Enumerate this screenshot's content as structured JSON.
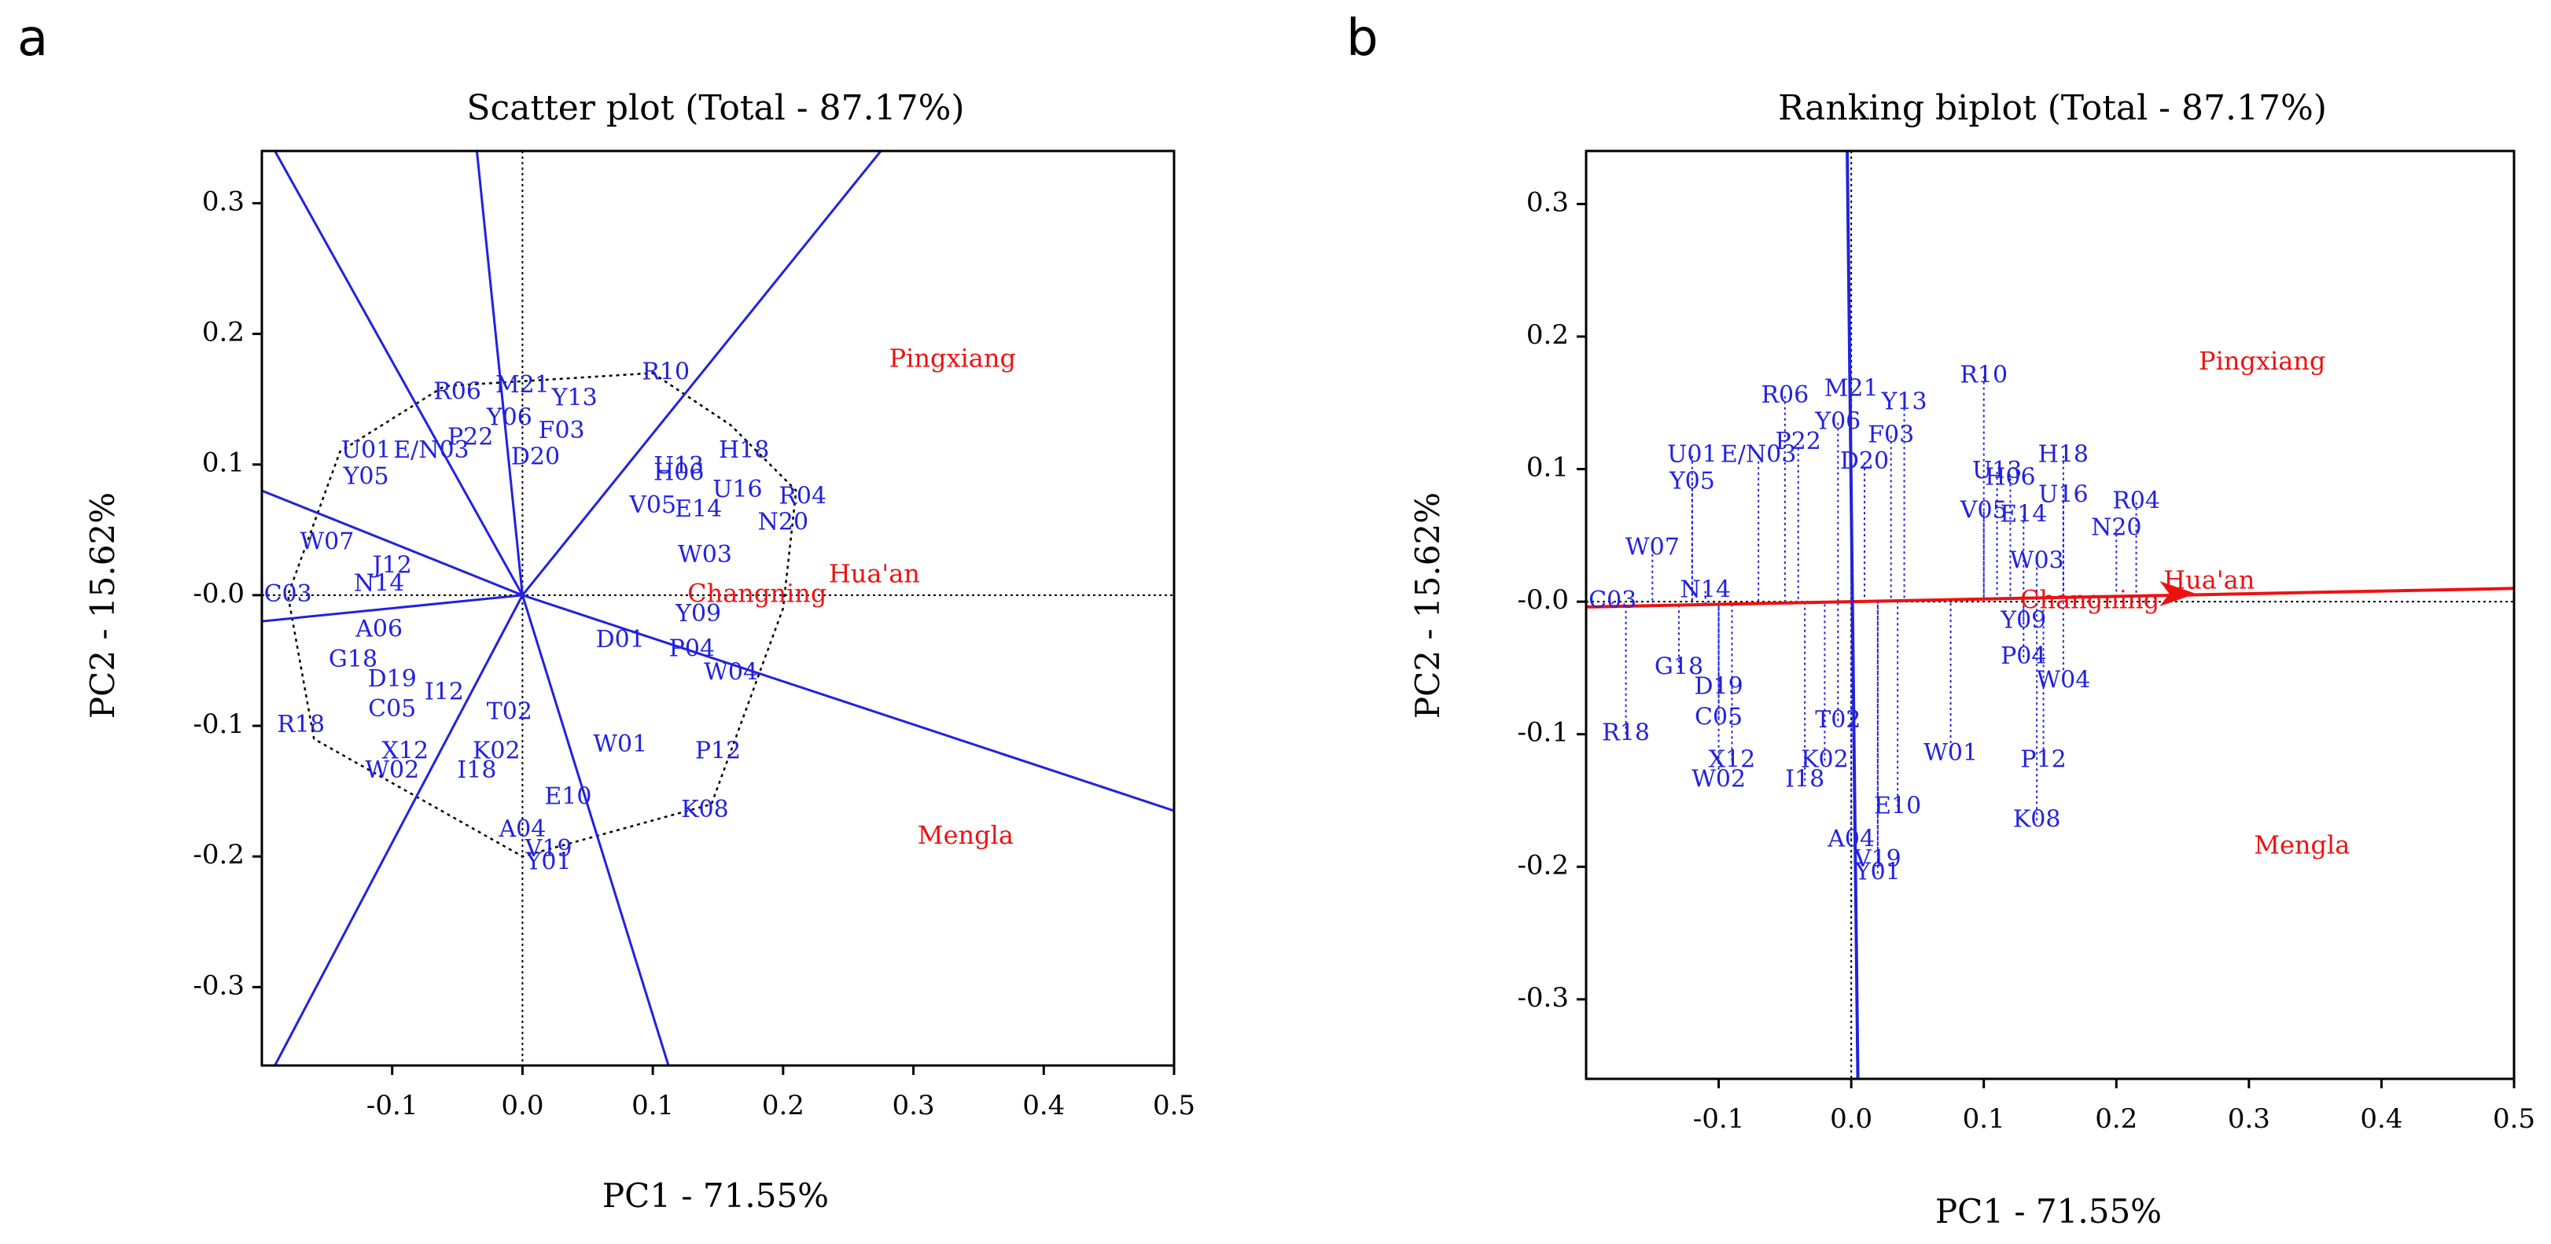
{
  "chart_data": [
    {
      "panel": "a",
      "type": "scatter",
      "title": "Scatter plot (Total - 87.17%)",
      "xlabel": "PC1 - 71.55%",
      "ylabel": "PC2 - 15.62%",
      "xlim": [
        -0.2,
        0.5
      ],
      "ylim": [
        -0.36,
        0.34
      ],
      "xticks": [
        -0.1,
        0.0,
        0.1,
        0.2,
        0.3,
        0.4,
        0.5
      ],
      "xtick_labels": [
        "-0.1",
        "0.0",
        "0.1",
        "0.2",
        "0.3",
        "0.4",
        "0.5"
      ],
      "yticks": [
        0.3,
        0.2,
        0.1,
        0.0,
        -0.1,
        -0.2,
        -0.3
      ],
      "ytick_labels": [
        "0.3",
        "0.2",
        "0.1",
        "-0.0",
        "-0.1",
        "-0.2",
        "-0.3"
      ],
      "series_color": "#2222dd",
      "env_color": "#ee1111",
      "environments": [
        {
          "name": "Pingxiang",
          "x": 0.33,
          "y": 0.18
        },
        {
          "name": "Hua'an",
          "x": 0.27,
          "y": 0.015
        },
        {
          "name": "Changning",
          "x": 0.18,
          "y": -0.0
        },
        {
          "name": "Mengla",
          "x": 0.34,
          "y": -0.185
        }
      ],
      "hull": [
        {
          "x": 0.1,
          "y": 0.17
        },
        {
          "x": 0.16,
          "y": 0.13
        },
        {
          "x": 0.21,
          "y": 0.08
        },
        {
          "x": 0.2,
          "y": -0.01
        },
        {
          "x": 0.145,
          "y": -0.16
        },
        {
          "x": 0.0,
          "y": -0.2
        },
        {
          "x": -0.16,
          "y": -0.11
        },
        {
          "x": -0.18,
          "y": 0.0
        },
        {
          "x": -0.14,
          "y": 0.11
        },
        {
          "x": -0.06,
          "y": 0.16
        }
      ],
      "rays": [
        {
          "x": -0.19,
          "y": 0.34
        },
        {
          "x": -0.035,
          "y": 0.34
        },
        {
          "x": 0.275,
          "y": 0.34
        },
        {
          "x": 0.5,
          "y": -0.165
        },
        {
          "x": 0.112,
          "y": -0.36
        },
        {
          "x": -0.19,
          "y": -0.36
        },
        {
          "x": -0.2,
          "y": 0.08
        },
        {
          "x": -0.2,
          "y": -0.02
        }
      ],
      "genotypes": [
        {
          "name": "R10",
          "x": 0.11,
          "y": 0.17
        },
        {
          "name": "R06",
          "x": -0.05,
          "y": 0.155
        },
        {
          "name": "M21",
          "x": 0.0,
          "y": 0.16
        },
        {
          "name": "Y13",
          "x": 0.04,
          "y": 0.15
        },
        {
          "name": "Y06",
          "x": -0.01,
          "y": 0.135
        },
        {
          "name": "P22",
          "x": -0.04,
          "y": 0.12
        },
        {
          "name": "F03",
          "x": 0.03,
          "y": 0.125
        },
        {
          "name": "U01",
          "x": -0.12,
          "y": 0.11
        },
        {
          "name": "E/N03",
          "x": -0.07,
          "y": 0.11
        },
        {
          "name": "D20",
          "x": 0.01,
          "y": 0.105
        },
        {
          "name": "H18",
          "x": 0.17,
          "y": 0.11
        },
        {
          "name": "U13",
          "x": 0.12,
          "y": 0.098
        },
        {
          "name": "H06",
          "x": 0.12,
          "y": 0.093
        },
        {
          "name": "U16",
          "x": 0.165,
          "y": 0.08
        },
        {
          "name": "R04",
          "x": 0.215,
          "y": 0.075
        },
        {
          "name": "N20",
          "x": 0.2,
          "y": 0.055
        },
        {
          "name": "Y05",
          "x": -0.12,
          "y": 0.09
        },
        {
          "name": "E14",
          "x": 0.135,
          "y": 0.065
        },
        {
          "name": "V05",
          "x": 0.1,
          "y": 0.068
        },
        {
          "name": "W03",
          "x": 0.14,
          "y": 0.03
        },
        {
          "name": "W07",
          "x": -0.15,
          "y": 0.04
        },
        {
          "name": "J12",
          "x": -0.1,
          "y": 0.022
        },
        {
          "name": "N14",
          "x": -0.11,
          "y": 0.008
        },
        {
          "name": "C03",
          "x": -0.18,
          "y": -0.0
        },
        {
          "name": "A06",
          "x": -0.11,
          "y": -0.027
        },
        {
          "name": "G18",
          "x": -0.13,
          "y": -0.05
        },
        {
          "name": "Y09",
          "x": 0.135,
          "y": -0.015
        },
        {
          "name": "P04",
          "x": 0.13,
          "y": -0.042
        },
        {
          "name": "W04",
          "x": 0.16,
          "y": -0.06
        },
        {
          "name": "D19",
          "x": -0.1,
          "y": -0.065
        },
        {
          "name": "I12",
          "x": -0.06,
          "y": -0.075
        },
        {
          "name": "C05",
          "x": -0.1,
          "y": -0.088
        },
        {
          "name": "R18",
          "x": -0.17,
          "y": -0.1
        },
        {
          "name": "X12",
          "x": -0.09,
          "y": -0.12
        },
        {
          "name": "W02",
          "x": -0.1,
          "y": -0.135
        },
        {
          "name": "K02",
          "x": -0.02,
          "y": -0.12
        },
        {
          "name": "I18",
          "x": -0.035,
          "y": -0.135
        },
        {
          "name": "W01",
          "x": 0.075,
          "y": -0.115
        },
        {
          "name": "P12",
          "x": 0.15,
          "y": -0.12
        },
        {
          "name": "E10",
          "x": 0.035,
          "y": -0.155
        },
        {
          "name": "K08",
          "x": 0.14,
          "y": -0.165
        },
        {
          "name": "A04",
          "x": 0.0,
          "y": -0.18
        },
        {
          "name": "V19",
          "x": 0.02,
          "y": -0.195
        },
        {
          "name": "Y01",
          "x": 0.02,
          "y": -0.205
        },
        {
          "name": "D01",
          "x": 0.075,
          "y": -0.035
        },
        {
          "name": "T02",
          "x": -0.01,
          "y": -0.09
        }
      ]
    },
    {
      "panel": "b",
      "type": "scatter",
      "title": "Ranking biplot (Total - 87.17%)",
      "xlabel": "PC1 - 71.55%",
      "ylabel": "PC2 - 15.62%",
      "xlim": [
        -0.2,
        0.5
      ],
      "ylim": [
        -0.36,
        0.34
      ],
      "xticks": [
        -0.1,
        0.0,
        0.1,
        0.2,
        0.3,
        0.4,
        0.5
      ],
      "xtick_labels": [
        "-0.1",
        "0.0",
        "0.1",
        "0.2",
        "0.3",
        "0.4",
        "0.5"
      ],
      "yticks": [
        0.3,
        0.2,
        0.1,
        0.0,
        -0.1,
        -0.2,
        -0.3
      ],
      "ytick_labels": [
        "0.3",
        "0.2",
        "0.1",
        "-0.0",
        "-0.1",
        "-0.2",
        "-0.3"
      ],
      "series_color": "#2222dd",
      "env_color": "#ee1111",
      "environments": [
        {
          "name": "Pingxiang",
          "x": 0.31,
          "y": 0.18
        },
        {
          "name": "Hua'an",
          "x": 0.27,
          "y": 0.015
        },
        {
          "name": "Changning",
          "x": 0.18,
          "y": -0.0
        },
        {
          "name": "Mengla",
          "x": 0.34,
          "y": -0.185
        }
      ],
      "aec_abscissa": {
        "from": {
          "x": -0.2,
          "y": -0.004
        },
        "to": {
          "x": 0.5,
          "y": 0.01
        }
      },
      "aec_arrow_tip": {
        "x": 0.26,
        "y": 0.006
      },
      "aec_ordinate": {
        "from": {
          "x": -0.003,
          "y": 0.34
        },
        "to": {
          "x": 0.005,
          "y": -0.36
        }
      },
      "genotypes": [
        {
          "name": "R10",
          "x": 0.1,
          "y": 0.17
        },
        {
          "name": "R06",
          "x": -0.05,
          "y": 0.155
        },
        {
          "name": "M21",
          "x": 0.0,
          "y": 0.16
        },
        {
          "name": "Y13",
          "x": 0.04,
          "y": 0.15
        },
        {
          "name": "Y06",
          "x": -0.01,
          "y": 0.135
        },
        {
          "name": "P22",
          "x": -0.04,
          "y": 0.12
        },
        {
          "name": "F03",
          "x": 0.03,
          "y": 0.125
        },
        {
          "name": "U01",
          "x": -0.12,
          "y": 0.11
        },
        {
          "name": "E/N03",
          "x": -0.07,
          "y": 0.11
        },
        {
          "name": "D20",
          "x": 0.01,
          "y": 0.105
        },
        {
          "name": "H18",
          "x": 0.16,
          "y": 0.11
        },
        {
          "name": "U13",
          "x": 0.11,
          "y": 0.098
        },
        {
          "name": "H06",
          "x": 0.12,
          "y": 0.093
        },
        {
          "name": "U16",
          "x": 0.16,
          "y": 0.08
        },
        {
          "name": "R04",
          "x": 0.215,
          "y": 0.075
        },
        {
          "name": "N20",
          "x": 0.2,
          "y": 0.055
        },
        {
          "name": "Y05",
          "x": -0.12,
          "y": 0.09
        },
        {
          "name": "E14",
          "x": 0.13,
          "y": 0.065
        },
        {
          "name": "V05",
          "x": 0.1,
          "y": 0.068
        },
        {
          "name": "W03",
          "x": 0.14,
          "y": 0.03
        },
        {
          "name": "W07",
          "x": -0.15,
          "y": 0.04
        },
        {
          "name": "N14",
          "x": -0.11,
          "y": 0.008
        },
        {
          "name": "C03",
          "x": -0.18,
          "y": -0.0
        },
        {
          "name": "G18",
          "x": -0.13,
          "y": -0.05
        },
        {
          "name": "Y09",
          "x": 0.13,
          "y": -0.015
        },
        {
          "name": "P04",
          "x": 0.13,
          "y": -0.042
        },
        {
          "name": "W04",
          "x": 0.16,
          "y": -0.06
        },
        {
          "name": "D19",
          "x": -0.1,
          "y": -0.065
        },
        {
          "name": "C05",
          "x": -0.1,
          "y": -0.088
        },
        {
          "name": "R18",
          "x": -0.17,
          "y": -0.1
        },
        {
          "name": "X12",
          "x": -0.09,
          "y": -0.12
        },
        {
          "name": "W02",
          "x": -0.1,
          "y": -0.135
        },
        {
          "name": "K02",
          "x": -0.02,
          "y": -0.12
        },
        {
          "name": "I18",
          "x": -0.035,
          "y": -0.135
        },
        {
          "name": "W01",
          "x": 0.075,
          "y": -0.115
        },
        {
          "name": "P12",
          "x": 0.145,
          "y": -0.12
        },
        {
          "name": "E10",
          "x": 0.035,
          "y": -0.155
        },
        {
          "name": "K08",
          "x": 0.14,
          "y": -0.165
        },
        {
          "name": "A04",
          "x": 0.0,
          "y": -0.18
        },
        {
          "name": "V19",
          "x": 0.02,
          "y": -0.195
        },
        {
          "name": "Y01",
          "x": 0.02,
          "y": -0.205
        },
        {
          "name": "T02",
          "x": -0.01,
          "y": -0.09
        }
      ]
    }
  ],
  "panels": [
    {
      "letter": "a"
    },
    {
      "letter": "b"
    }
  ],
  "colors": {
    "axes": "#000000",
    "background": "#ffffff"
  }
}
